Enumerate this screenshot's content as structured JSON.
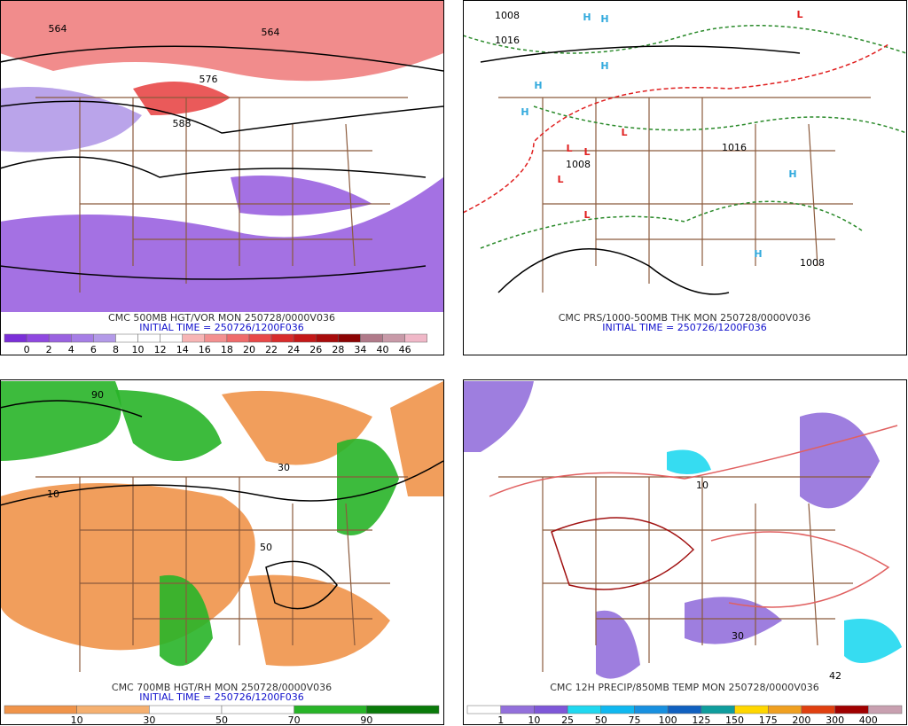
{
  "panels": [
    {
      "title": "CMC 500MB HGT/VOR MON 250728/0000V036",
      "init": "INITIAL TIME = 250726/1200F036",
      "colorbar": {
        "labels": [
          "0",
          "2",
          "4",
          "6",
          "8",
          "10",
          "12",
          "14",
          "16",
          "18",
          "20",
          "22",
          "24",
          "26",
          "28",
          "34",
          "40",
          "46"
        ],
        "colors": [
          "#7b2fd8",
          "#8f48e0",
          "#9a62e0",
          "#a67ee6",
          "#b39ae8",
          "#ffffff",
          "#ffffff",
          "#ffffff",
          "#f7b5b5",
          "#f39090",
          "#ef6b6b",
          "#e84848",
          "#d82c2c",
          "#c41818",
          "#a80c0c",
          "#8c0404",
          "#b07a8a",
          "#c89aa8",
          "#f0b8c8"
        ]
      },
      "map_labels": [
        {
          "text": "564",
          "color": "#000000"
        },
        {
          "text": "576",
          "color": "#000000"
        },
        {
          "text": "588",
          "color": "#000000"
        },
        {
          "text": "564",
          "color": "#000000"
        }
      ]
    },
    {
      "title": "CMC PRS/1000-500MB THK MON 250728/0000V036",
      "init": "INITIAL TIME = 250726/1200F036",
      "colorbar": null,
      "map_labels": [
        {
          "text": "H",
          "color": "#33aadd"
        },
        {
          "text": "H",
          "color": "#33aadd"
        },
        {
          "text": "H",
          "color": "#33aadd"
        },
        {
          "text": "H",
          "color": "#33aadd"
        },
        {
          "text": "H",
          "color": "#33aadd"
        },
        {
          "text": "H",
          "color": "#33aadd"
        },
        {
          "text": "H",
          "color": "#33aadd"
        },
        {
          "text": "L",
          "color": "#e02020"
        },
        {
          "text": "L",
          "color": "#e02020"
        },
        {
          "text": "L",
          "color": "#e02020"
        },
        {
          "text": "L",
          "color": "#e02020"
        },
        {
          "text": "L",
          "color": "#e02020"
        },
        {
          "text": "L",
          "color": "#e02020"
        },
        {
          "text": "1008",
          "color": "#000000"
        },
        {
          "text": "1016",
          "color": "#000000"
        },
        {
          "text": "1008",
          "color": "#000000"
        },
        {
          "text": "1016",
          "color": "#000000"
        },
        {
          "text": "1008",
          "color": "#000000"
        }
      ]
    },
    {
      "title": "CMC 700MB HGT/RH MON 250728/0000V036",
      "init": "INITIAL TIME = 250726/1200F036",
      "colorbar": {
        "labels": [
          "10",
          "30",
          "50",
          "70",
          "90"
        ],
        "colors": [
          "#f0944a",
          "#f5b070",
          "#ffffff",
          "#ffffff",
          "#28b428",
          "#0a7a0a"
        ]
      },
      "map_labels": [
        {
          "text": "10",
          "color": "#000000"
        },
        {
          "text": "30",
          "color": "#000000"
        },
        {
          "text": "50",
          "color": "#000000"
        },
        {
          "text": "90",
          "color": "#000000"
        }
      ]
    },
    {
      "title": "CMC 12H PRECIP/850MB TEMP MON 250728/0000V036",
      "init": null,
      "colorbar": {
        "labels": [
          "1",
          "10",
          "25",
          "50",
          "75",
          "100",
          "125",
          "150",
          "175",
          "200",
          "300",
          "400"
        ],
        "colors": [
          "#ffffff",
          "#9370db",
          "#7e57d8",
          "#20d8f0",
          "#10b8f0",
          "#1890e0",
          "#1060c0",
          "#0f9d9d",
          "#ffd700",
          "#f0a020",
          "#e04010",
          "#a00000",
          "#c8a0b0"
        ]
      },
      "map_labels": [
        {
          "text": "42",
          "color": "#000000"
        },
        {
          "text": "10",
          "color": "#000000"
        },
        {
          "text": "30",
          "color": "#000000"
        }
      ]
    }
  ]
}
